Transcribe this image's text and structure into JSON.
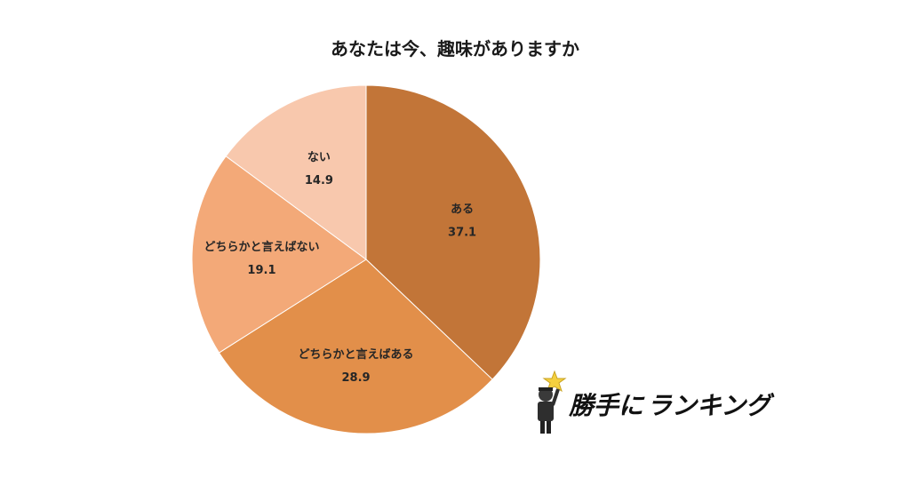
{
  "chart_data": {
    "type": "pie",
    "title": "あなたは今、趣味がありますか",
    "categories": [
      "ある",
      "どちらかと言えばある",
      "どちらかと言えばない",
      "ない"
    ],
    "values": [
      37.1,
      28.9,
      19.1,
      14.9
    ],
    "value_labels": [
      "37.1",
      "28.9",
      "19.1",
      "14.9"
    ],
    "colors": [
      "#C27538",
      "#E28F4A",
      "#F3A978",
      "#F8C8AD"
    ],
    "start_angle_deg": 0,
    "direction": "clockwise",
    "legend": "none"
  },
  "logo": {
    "text_main": "勝手に",
    "text_brand": "ランキング",
    "star_color": "#F4D03F",
    "text_color": "#111111"
  }
}
